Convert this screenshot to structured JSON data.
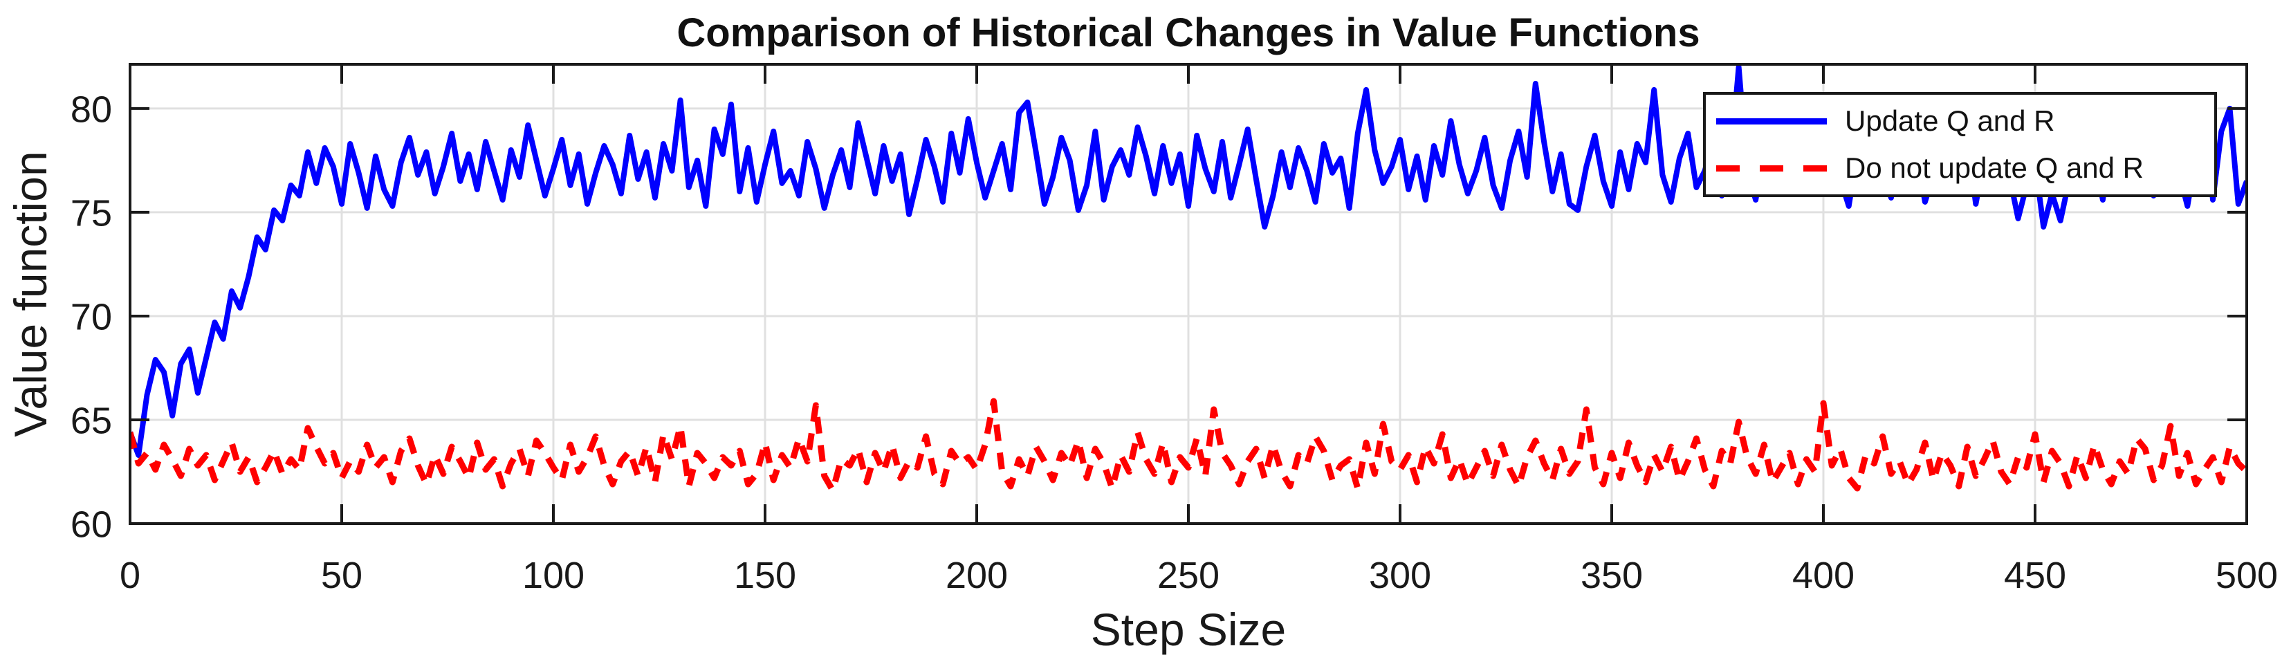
{
  "figure": {
    "title": "Comparison of Historical Changes in Value Functions",
    "xlabel": "Step Size",
    "ylabel": "Value function"
  },
  "legend": {
    "position": "northeast",
    "items": [
      {
        "label": "Update Q and R",
        "color": "#0000FF",
        "style": "solid"
      },
      {
        "label": "Do not update Q and R",
        "color": "#FF0000",
        "style": "dashed"
      }
    ]
  },
  "colors": {
    "background": "#ffffff",
    "axis": "#1a1a1a",
    "grid": "#e0e0e0",
    "text": "#191919",
    "series_blue": "#0000FF",
    "series_red": "#FF0000"
  },
  "chart_data": {
    "type": "line",
    "title": "Comparison of Historical Changes in Value Functions",
    "xlabel": "Step Size",
    "ylabel": "Value function",
    "xlim": [
      0,
      500
    ],
    "ylim": [
      60,
      82.13
    ],
    "x_ticks": [
      0,
      50,
      100,
      150,
      200,
      250,
      300,
      350,
      400,
      450,
      500
    ],
    "y_ticks": [
      60,
      65,
      70,
      75,
      80
    ],
    "grid": true,
    "legend_position": "northeast",
    "x_start": 0,
    "x_step": 2,
    "series": [
      {
        "name": "Update Q and R",
        "color": "#0000FF",
        "line_style": "solid",
        "line_width": 8,
        "values": [
          64.4,
          63.3,
          66.2,
          67.9,
          67.3,
          65.2,
          67.7,
          68.4,
          66.3,
          68.0,
          69.7,
          68.9,
          71.2,
          70.4,
          71.9,
          73.8,
          73.2,
          75.1,
          74.6,
          76.3,
          75.8,
          77.9,
          76.4,
          78.1,
          77.2,
          75.4,
          78.3,
          76.9,
          75.2,
          77.7,
          76.1,
          75.3,
          77.4,
          78.6,
          76.8,
          77.9,
          75.9,
          77.2,
          78.8,
          76.5,
          77.8,
          76.1,
          78.4,
          77.0,
          75.6,
          78.0,
          76.7,
          79.2,
          77.5,
          75.8,
          77.1,
          78.5,
          76.3,
          77.8,
          75.4,
          76.9,
          78.2,
          77.3,
          75.9,
          78.7,
          76.6,
          77.9,
          75.7,
          78.3,
          77.0,
          80.4,
          76.2,
          77.5,
          75.3,
          79.0,
          77.8,
          80.2,
          76.0,
          78.1,
          75.5,
          77.3,
          78.9,
          76.4,
          77.0,
          75.8,
          78.4,
          77.1,
          75.2,
          76.8,
          78.0,
          76.2,
          79.3,
          77.6,
          75.9,
          78.2,
          76.5,
          77.8,
          74.9,
          76.6,
          78.5,
          77.2,
          75.5,
          78.8,
          76.9,
          79.5,
          77.4,
          75.7,
          77.0,
          78.3,
          76.1,
          79.8,
          80.3,
          77.9,
          75.4,
          76.7,
          78.6,
          77.5,
          75.1,
          76.3,
          78.9,
          75.6,
          77.2,
          78.0,
          76.8,
          79.1,
          77.7,
          75.9,
          78.2,
          76.4,
          77.8,
          75.3,
          78.7,
          77.1,
          76.0,
          78.4,
          75.7,
          77.3,
          79.0,
          76.6,
          74.3,
          75.8,
          77.9,
          76.2,
          78.1,
          77.0,
          75.5,
          78.3,
          76.9,
          77.6,
          75.2,
          78.8,
          80.9,
          78.0,
          76.4,
          77.2,
          78.5,
          76.1,
          77.7,
          75.6,
          78.2,
          76.8,
          79.4,
          77.3,
          75.9,
          77.0,
          78.6,
          76.3,
          75.2,
          77.5,
          78.9,
          76.7,
          81.2,
          78.4,
          76.0,
          77.8,
          75.4,
          75.1,
          77.2,
          78.7,
          76.5,
          75.3,
          77.9,
          76.1,
          78.3,
          77.4,
          80.9,
          76.8,
          75.5,
          77.6,
          78.8,
          76.2,
          77.0,
          78.5,
          75.8,
          77.3,
          82.0,
          77.1,
          75.6,
          78.0,
          76.9,
          79.2,
          77.7,
          76.3,
          78.4,
          75.9,
          77.5,
          78.9,
          76.6,
          75.3,
          77.8,
          76.1,
          78.2,
          77.0,
          75.7,
          78.6,
          76.4,
          77.9,
          75.5,
          76.8,
          78.3,
          77.2,
          76.0,
          78.7,
          75.4,
          77.6,
          76.2,
          78.1,
          76.7,
          74.7,
          76.3,
          77.4,
          74.3,
          75.9,
          74.6,
          76.5,
          78.0,
          76.1,
          77.8,
          75.6,
          78.4,
          77.0,
          76.3,
          78.8,
          77.5,
          75.8,
          77.2,
          78.6,
          76.9,
          75.3,
          77.7,
          80.2,
          75.6,
          78.9,
          80.0,
          75.4,
          76.5
        ]
      },
      {
        "name": "Do not update Q and R",
        "color": "#FF0000",
        "line_style": "dashed",
        "line_width": 9,
        "values": [
          64.4,
          62.9,
          63.4,
          62.6,
          63.8,
          63.1,
          62.3,
          63.6,
          62.8,
          63.3,
          62.1,
          63.0,
          63.9,
          62.5,
          63.2,
          62.0,
          62.7,
          63.5,
          62.4,
          63.1,
          62.6,
          64.6,
          63.7,
          62.9,
          63.4,
          62.2,
          63.0,
          62.5,
          63.8,
          62.7,
          63.2,
          62.0,
          63.5,
          64.1,
          62.8,
          61.9,
          63.3,
          62.4,
          63.7,
          63.0,
          62.2,
          63.9,
          62.6,
          63.1,
          61.8,
          62.9,
          63.6,
          62.3,
          64.0,
          63.4,
          62.7,
          62.1,
          63.8,
          62.5,
          63.2,
          64.2,
          62.8,
          61.9,
          63.0,
          63.5,
          62.3,
          63.7,
          62.0,
          64.3,
          63.1,
          64.7,
          61.8,
          63.4,
          62.9,
          62.2,
          63.2,
          62.8,
          63.5,
          61.9,
          62.4,
          63.9,
          62.1,
          63.3,
          62.7,
          64.1,
          63.0,
          65.7,
          62.3,
          61.6,
          63.1,
          62.8,
          63.6,
          62.0,
          63.4,
          62.5,
          63.8,
          62.2,
          63.0,
          62.7,
          64.2,
          62.4,
          61.9,
          63.5,
          62.9,
          63.2,
          62.6,
          63.8,
          65.9,
          62.5,
          61.8,
          63.1,
          62.3,
          63.7,
          63.0,
          62.1,
          63.4,
          62.8,
          64.0,
          62.2,
          63.6,
          62.9,
          61.7,
          63.3,
          62.5,
          64.4,
          63.1,
          62.4,
          63.9,
          62.0,
          63.2,
          62.7,
          64.1,
          62.3,
          65.5,
          63.4,
          62.8,
          61.9,
          63.0,
          63.6,
          62.2,
          63.8,
          62.5,
          61.8,
          63.3,
          62.9,
          64.2,
          63.5,
          62.1,
          62.8,
          63.1,
          61.7,
          63.9,
          62.4,
          64.8,
          63.0,
          62.6,
          63.3,
          62.0,
          63.7,
          62.9,
          64.3,
          62.2,
          63.1,
          61.9,
          62.7,
          63.5,
          62.3,
          63.8,
          62.6,
          61.8,
          63.2,
          64.0,
          62.9,
          62.1,
          63.6,
          62.4,
          63.0,
          65.5,
          62.7,
          61.9,
          63.4,
          62.2,
          63.9,
          62.8,
          62.0,
          63.3,
          62.5,
          63.7,
          62.1,
          63.0,
          64.1,
          62.6,
          61.8,
          63.5,
          62.9,
          64.9,
          63.2,
          62.4,
          63.8,
          62.0,
          62.7,
          63.4,
          61.9,
          63.1,
          62.5,
          65.8,
          62.8,
          63.6,
          62.2,
          61.7,
          63.3,
          62.9,
          64.2,
          62.4,
          63.0,
          61.9,
          62.6,
          63.9,
          62.1,
          63.4,
          62.8,
          61.8,
          63.7,
          62.3,
          63.1,
          64.0,
          62.5,
          61.9,
          63.2,
          62.7,
          64.3,
          62.0,
          63.5,
          62.9,
          61.8,
          63.3,
          62.2,
          63.8,
          62.6,
          61.9,
          63.0,
          62.4,
          64.1,
          63.6,
          62.1,
          62.8,
          64.7,
          62.3,
          63.4,
          61.9,
          62.6,
          63.2,
          62.0,
          63.7,
          62.9,
          62.5
        ]
      }
    ]
  }
}
